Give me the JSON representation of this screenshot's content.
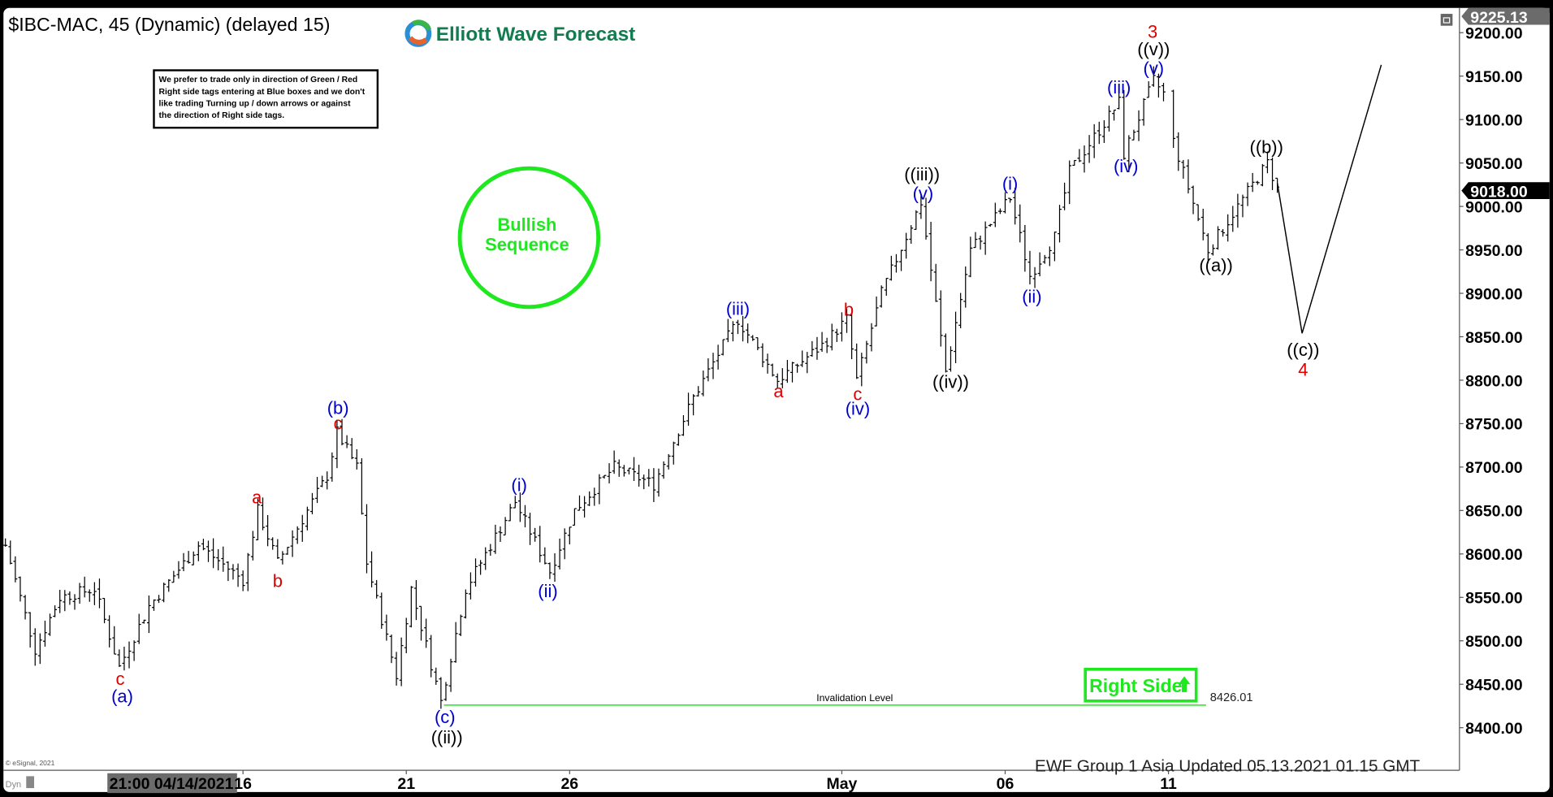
{
  "header": {
    "symbol_title": "$IBC-MAC, 45 (Dynamic) (delayed 15)",
    "logo_text": "Elliott Wave Forecast"
  },
  "note_box": {
    "lines": [
      "We prefer to trade only in direction of Green / Red",
      "Right side tags entering at Blue boxes and we don't",
      "like trading Turning up / down arrows or against",
      "the direction of Right side tags."
    ]
  },
  "badge": {
    "line1": "Bullish",
    "line2": "Sequence",
    "color": "#1ee81e"
  },
  "right_side_tag": {
    "label": "Right Side",
    "icon": "arrow-up-icon",
    "color": "#1ee81e"
  },
  "footer": {
    "copyright": "© eSignal, 2021",
    "updated": "EWF Group 1 Asia Updated 05.13.2021 01.15 GMT",
    "mode": "Dyn"
  },
  "price_tags": {
    "high": "9225.13",
    "last": "9018.00"
  },
  "chart_data": {
    "type": "ohlc",
    "ylim": [
      8350,
      9230
    ],
    "y_ticks": [
      "8400.00",
      "8450.00",
      "8500.00",
      "8550.00",
      "8600.00",
      "8650.00",
      "8700.00",
      "8750.00",
      "8800.00",
      "8850.00",
      "8900.00",
      "8950.00",
      "9000.00",
      "9050.00",
      "9100.00",
      "9150.00",
      "9200.00"
    ],
    "x_cursor_label": "21:00 04/14/2021",
    "x_ticks": [
      {
        "label": "16",
        "bar": 49
      },
      {
        "label": "21",
        "bar": 82
      },
      {
        "label": "26",
        "bar": 115
      },
      {
        "label": "May",
        "bar": 170
      },
      {
        "label": "06",
        "bar": 203
      },
      {
        "label": "11",
        "bar": 236
      }
    ],
    "price_path": [
      [
        1,
        8610
      ],
      [
        7,
        8490
      ],
      [
        12,
        8550
      ],
      [
        19,
        8560
      ],
      [
        24,
        8470
      ],
      [
        30,
        8540
      ],
      [
        40,
        8610
      ],
      [
        49,
        8570
      ],
      [
        52,
        8650
      ],
      [
        56,
        8590
      ],
      [
        66,
        8690
      ],
      [
        68,
        8740
      ],
      [
        72,
        8700
      ],
      [
        74,
        8590
      ],
      [
        80,
        8460
      ],
      [
        83,
        8560
      ],
      [
        89,
        8430
      ],
      [
        94,
        8560
      ],
      [
        104,
        8660
      ],
      [
        111,
        8580
      ],
      [
        116,
        8650
      ],
      [
        124,
        8700
      ],
      [
        132,
        8680
      ],
      [
        140,
        8780
      ],
      [
        149,
        8870
      ],
      [
        157,
        8800
      ],
      [
        166,
        8840
      ],
      [
        171,
        8870
      ],
      [
        173,
        8800
      ],
      [
        178,
        8900
      ],
      [
        186,
        9005
      ],
      [
        191,
        8810
      ],
      [
        196,
        8950
      ],
      [
        204,
        9010
      ],
      [
        208,
        8920
      ],
      [
        213,
        8965
      ],
      [
        216,
        9040
      ],
      [
        226,
        9120
      ],
      [
        227,
        9060
      ],
      [
        233,
        9145
      ],
      [
        235,
        9130
      ],
      [
        237,
        9075
      ],
      [
        244,
        8950
      ],
      [
        256,
        9050
      ],
      [
        258,
        9020
      ]
    ],
    "projection": [
      [
        258,
        9027
      ],
      [
        263,
        8854
      ],
      [
        279,
        9163
      ]
    ],
    "invalidation": {
      "label": "Invalidation Level",
      "value": "8426.01",
      "price": 8426.01,
      "from_bar": 89.6,
      "to_bar": 243.6,
      "color": "#1ee81e"
    },
    "wave_labels": [
      {
        "text": "c",
        "color": "#e00000",
        "bar": 24.2,
        "price": 8456
      },
      {
        "text": "(a)",
        "color": "#0000cc",
        "bar": 24.6,
        "price": 8436
      },
      {
        "text": "a",
        "color": "#e00000",
        "bar": 51.8,
        "price": 8665
      },
      {
        "text": "b",
        "color": "#e00000",
        "bar": 56,
        "price": 8569
      },
      {
        "text": "(b)",
        "color": "#0000cc",
        "bar": 68.2,
        "price": 8768
      },
      {
        "text": "c",
        "color": "#e00000",
        "bar": 68.2,
        "price": 8750
      },
      {
        "text": "(c)",
        "color": "#0000cc",
        "bar": 89.8,
        "price": 8412
      },
      {
        "text": "((ii))",
        "color": "#000000",
        "bar": 90.2,
        "price": 8389
      },
      {
        "text": "(i)",
        "color": "#0000cc",
        "bar": 104.8,
        "price": 8679
      },
      {
        "text": "(ii)",
        "color": "#0000cc",
        "bar": 110.6,
        "price": 8557
      },
      {
        "text": "(iii)",
        "color": "#0000cc",
        "bar": 149,
        "price": 8882
      },
      {
        "text": "a",
        "color": "#e00000",
        "bar": 157.2,
        "price": 8787
      },
      {
        "text": "b",
        "color": "#e00000",
        "bar": 171.4,
        "price": 8881
      },
      {
        "text": "c",
        "color": "#e00000",
        "bar": 173.2,
        "price": 8784
      },
      {
        "text": "(iv)",
        "color": "#0000cc",
        "bar": 173.2,
        "price": 8767
      },
      {
        "text": "((iii))",
        "color": "#000000",
        "bar": 186.2,
        "price": 9037
      },
      {
        "text": "(v)",
        "color": "#0000cc",
        "bar": 186.4,
        "price": 9015
      },
      {
        "text": "((iv))",
        "color": "#000000",
        "bar": 192,
        "price": 8798
      },
      {
        "text": "(i)",
        "color": "#0000cc",
        "bar": 204,
        "price": 9026
      },
      {
        "text": "(ii)",
        "color": "#0000cc",
        "bar": 208.4,
        "price": 8896
      },
      {
        "text": "(iii)",
        "color": "#0000cc",
        "bar": 226,
        "price": 9137
      },
      {
        "text": "(iv)",
        "color": "#0000cc",
        "bar": 227.4,
        "price": 9046
      },
      {
        "text": "3",
        "color": "#e00000",
        "bar": 232.8,
        "price": 9201
      },
      {
        "text": "((v))",
        "color": "#000000",
        "bar": 233,
        "price": 9181
      },
      {
        "text": "(v)",
        "color": "#0000cc",
        "bar": 233,
        "price": 9159
      },
      {
        "text": "((a))",
        "color": "#000000",
        "bar": 245.6,
        "price": 8932
      },
      {
        "text": "((b))",
        "color": "#000000",
        "bar": 255.8,
        "price": 9068
      },
      {
        "text": "((c))",
        "color": "#000000",
        "bar": 263.2,
        "price": 8835
      },
      {
        "text": "4",
        "color": "#e00000",
        "bar": 263.2,
        "price": 8812
      }
    ]
  }
}
